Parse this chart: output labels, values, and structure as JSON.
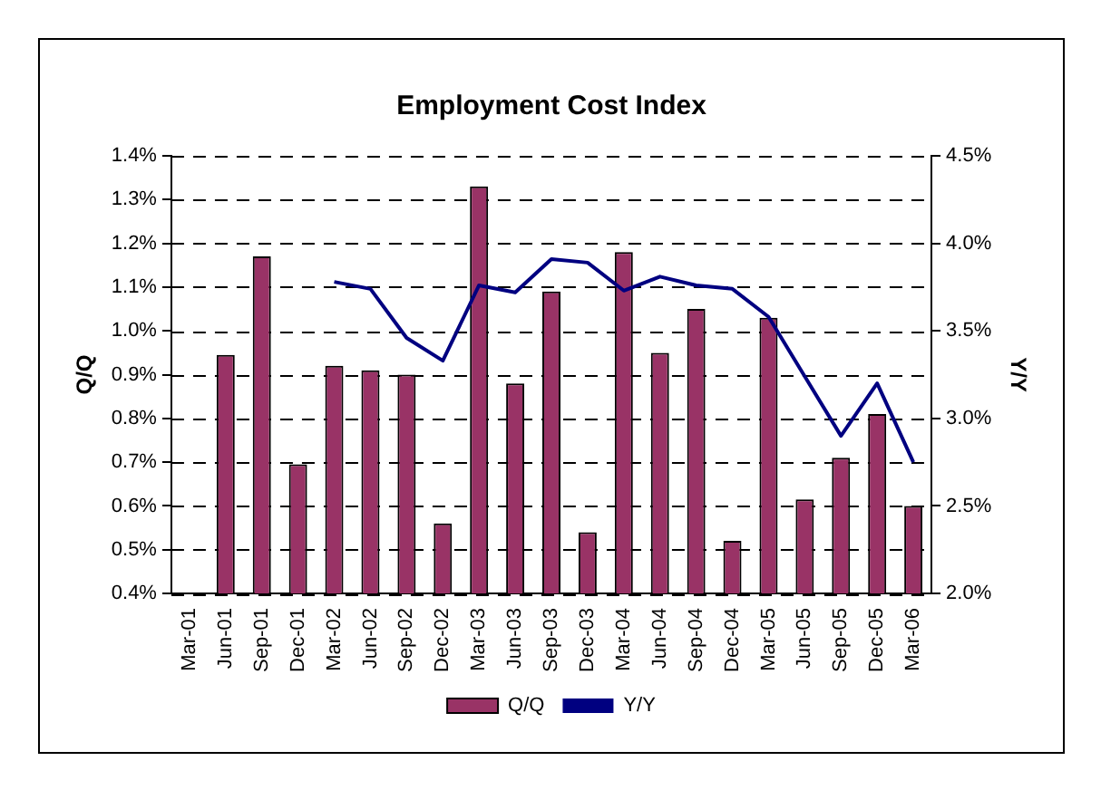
{
  "chart_data": {
    "type": "bar",
    "title": "Employment Cost Index",
    "ylabel": "Q/Q",
    "y2label": "Y/Y",
    "categories": [
      "Mar-01",
      "Jun-01",
      "Sep-01",
      "Dec-01",
      "Mar-02",
      "Jun-02",
      "Sep-02",
      "Dec-02",
      "Mar-03",
      "Jun-03",
      "Sep-03",
      "Dec-03",
      "Mar-04",
      "Jun-04",
      "Sep-04",
      "Dec-04",
      "Mar-05",
      "Jun-05",
      "Sep-05",
      "Dec-05",
      "Mar-06"
    ],
    "series": [
      {
        "name": "Q/Q",
        "color": "#993366",
        "values": [
          null,
          0.945,
          1.17,
          0.695,
          0.92,
          0.91,
          0.9,
          0.56,
          1.33,
          0.88,
          1.09,
          0.54,
          1.18,
          0.95,
          1.05,
          0.52,
          1.03,
          0.615,
          0.71,
          0.81,
          0.6
        ]
      },
      {
        "name": "Y/Y",
        "type": "line",
        "axis": "y2",
        "color": "#000080",
        "values": [
          null,
          null,
          null,
          null,
          3.78,
          3.74,
          3.46,
          3.33,
          3.76,
          3.72,
          3.91,
          3.89,
          3.73,
          3.81,
          3.76,
          3.74,
          3.58,
          3.24,
          2.9,
          3.2,
          2.75
        ]
      }
    ],
    "ylim": [
      0.4,
      1.4
    ],
    "yticks": [
      {
        "value": 0.4,
        "label": "0.4%"
      },
      {
        "value": 0.5,
        "label": "0.5%"
      },
      {
        "value": 0.6,
        "label": "0.6%"
      },
      {
        "value": 0.7,
        "label": "0.7%"
      },
      {
        "value": 0.8,
        "label": "0.8%"
      },
      {
        "value": 0.9,
        "label": "0.9%"
      },
      {
        "value": 1.0,
        "label": "1.0%"
      },
      {
        "value": 1.1,
        "label": "1.1%"
      },
      {
        "value": 1.2,
        "label": "1.2%"
      },
      {
        "value": 1.3,
        "label": "1.3%"
      },
      {
        "value": 1.4,
        "label": "1.4%"
      }
    ],
    "y2lim": [
      2.0,
      4.5
    ],
    "y2ticks": [
      {
        "value": 2.0,
        "label": "2.0%"
      },
      {
        "value": 2.5,
        "label": "2.5%"
      },
      {
        "value": 3.0,
        "label": "3.0%"
      },
      {
        "value": 3.5,
        "label": "3.5%"
      },
      {
        "value": 4.0,
        "label": "4.0%"
      },
      {
        "value": 4.5,
        "label": "4.5%"
      }
    ],
    "grid": "y",
    "legend": "bottom",
    "marker": "none",
    "line_style": "solid"
  }
}
